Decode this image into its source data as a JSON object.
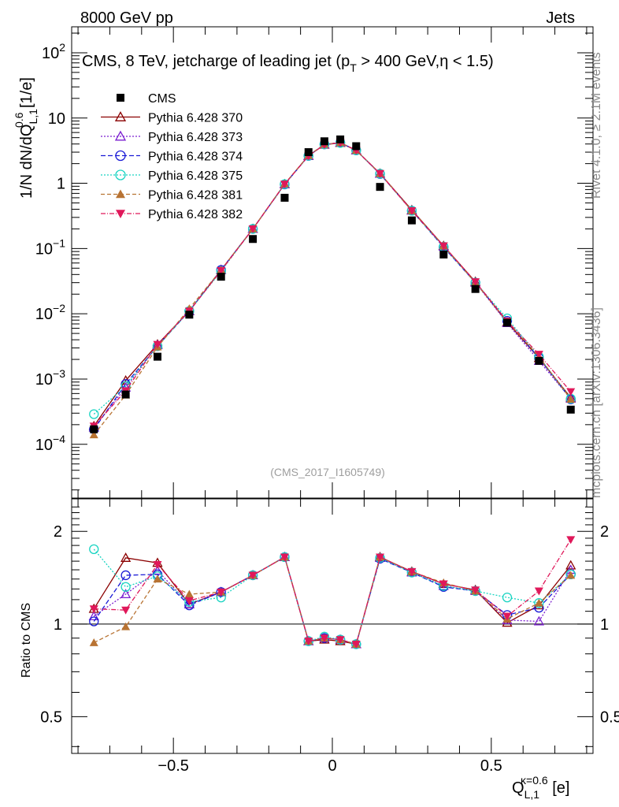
{
  "header": {
    "left": "8000 GeV pp",
    "right": "Jets"
  },
  "side_labels": {
    "rivet": "Rivet 4.1.0, ≥ 2.1M events",
    "mcplots": "mcplots.cern.ch [arXiv:1306.3436]"
  },
  "chart_data": [
    {
      "type": "scatter",
      "panel": "main",
      "title_pre": "CMS, 8 TeV, jetcharge of leading jet (p",
      "title_sub": "T",
      "title_post": " > 400 GeV,η < 1.5)",
      "ylabel_pre": "1/N dN/dQ",
      "ylabel_sup": "0.6",
      "ylabel_sub": "L,1",
      "ylabel_post": " [1/e]",
      "yscale": "log",
      "ylim": [
        1.5e-05,
        250
      ],
      "xlim": [
        -0.82,
        0.82
      ],
      "ytick_labels": [
        {
          "value": 0.0001,
          "base": "10",
          "exp": "−4"
        },
        {
          "value": 0.001,
          "base": "10",
          "exp": "−3"
        },
        {
          "value": 0.01,
          "base": "10",
          "exp": "−2"
        },
        {
          "value": 0.1,
          "base": "10",
          "exp": "−1"
        },
        {
          "value": 1,
          "base": "1",
          "exp": ""
        },
        {
          "value": 10,
          "base": "10",
          "exp": ""
        },
        {
          "value": 100,
          "base": "10",
          "exp": "2"
        }
      ],
      "watermark": "(CMS_2017_I1605749)",
      "x": [
        -0.75,
        -0.65,
        -0.55,
        -0.45,
        -0.35,
        -0.25,
        -0.15,
        -0.075,
        -0.025,
        0.025,
        0.075,
        0.15,
        0.25,
        0.35,
        0.45,
        0.55,
        0.65,
        0.75
      ],
      "series": [
        {
          "name": "CMS",
          "marker": "square",
          "color": "#000000",
          "dash": "",
          "values": [
            0.00017,
            0.00058,
            0.0022,
            0.0097,
            0.037,
            0.14,
            0.6,
            3.0,
            4.4,
            4.7,
            3.7,
            0.88,
            0.27,
            0.081,
            0.024,
            0.0073,
            0.0019,
            0.00034
          ]
        },
        {
          "name": "Pythia 6.428 370",
          "marker": "triangle-up-open",
          "color": "#8b0000",
          "dash": "",
          "values": [
            0.00019,
            0.00095,
            0.0034,
            0.011,
            0.047,
            0.2,
            0.97,
            2.65,
            3.9,
            4.15,
            3.2,
            1.41,
            0.39,
            0.11,
            0.031,
            0.0074,
            0.0021,
            0.00052
          ]
        },
        {
          "name": "Pythia 6.428 373",
          "marker": "triangle-up-open",
          "color": "#7b1fd0",
          "dash": "2,2",
          "values": [
            0.00018,
            0.00074,
            0.0033,
            0.011,
            0.047,
            0.2,
            0.97,
            2.62,
            3.95,
            4.2,
            3.2,
            1.4,
            0.38,
            0.107,
            0.03,
            0.0072,
            0.0019,
            0.0005
          ]
        },
        {
          "name": "Pythia 6.428 374",
          "marker": "circle-open",
          "color": "#1a1ad6",
          "dash": "6,3",
          "values": [
            0.00017,
            0.00084,
            0.0032,
            0.011,
            0.047,
            0.2,
            0.96,
            2.63,
            3.95,
            4.2,
            3.2,
            1.39,
            0.38,
            0.105,
            0.03,
            0.0078,
            0.0021,
            0.00049
          ]
        },
        {
          "name": "Pythia 6.428 375",
          "marker": "circle-open",
          "color": "#19d4c2",
          "dash": "2,2",
          "values": [
            0.00029,
            0.00078,
            0.0032,
            0.011,
            0.045,
            0.2,
            0.97,
            2.64,
            3.95,
            4.15,
            3.2,
            1.4,
            0.38,
            0.107,
            0.03,
            0.0085,
            0.0022,
            0.0005
          ]
        },
        {
          "name": "Pythia 6.428 381",
          "marker": "triangle-up-filled",
          "color": "#b87333",
          "dash": "5,3",
          "values": [
            0.00014,
            0.00057,
            0.0031,
            0.012,
            0.047,
            0.2,
            0.98,
            2.66,
            3.95,
            4.2,
            3.2,
            1.41,
            0.38,
            0.11,
            0.03,
            0.0076,
            0.0022,
            0.00049
          ]
        },
        {
          "name": "Pythia 6.428 382",
          "marker": "triangle-down-filled",
          "color": "#e0185a",
          "dash": "6,2,1,2",
          "values": [
            0.00019,
            0.00066,
            0.0034,
            0.011,
            0.046,
            0.2,
            0.97,
            2.62,
            3.9,
            4.2,
            3.2,
            1.41,
            0.38,
            0.11,
            0.031,
            0.0077,
            0.0024,
            0.00064
          ]
        }
      ]
    },
    {
      "type": "scatter",
      "panel": "ratio",
      "ylabel": "Ratio to CMS",
      "yscale": "log",
      "ylim": [
        0.38,
        2.55
      ],
      "ytick_labels": [
        {
          "value": 0.5,
          "label": "0.5"
        },
        {
          "value": 1,
          "label": "1"
        },
        {
          "value": 2,
          "label": "2"
        }
      ],
      "xlabel_pre": "Q",
      "xlabel_sup": "κ=0.6",
      "xlabel_sub": "L,1",
      "xlabel_post": " [e]",
      "xtick_labels": [
        {
          "value": -0.5,
          "label": "−0.5"
        },
        {
          "value": 0,
          "label": "0"
        },
        {
          "value": 0.5,
          "label": "0.5"
        }
      ],
      "reference_line": 1,
      "series": [
        {
          "name": "Pythia 6.428 370",
          "values": [
            1.12,
            1.64,
            1.58,
            1.16,
            1.27,
            1.44,
            1.65,
            0.88,
            0.89,
            0.88,
            0.86,
            1.65,
            1.48,
            1.35,
            1.29,
            1.01,
            1.15,
            1.55
          ]
        },
        {
          "name": "Pythia 6.428 373",
          "values": [
            1.06,
            1.25,
            1.49,
            1.16,
            1.27,
            1.44,
            1.65,
            0.88,
            0.9,
            0.89,
            0.86,
            1.64,
            1.47,
            1.33,
            1.28,
            1.03,
            1.02,
            1.5
          ]
        },
        {
          "name": "Pythia 6.428 374",
          "values": [
            1.02,
            1.44,
            1.45,
            1.15,
            1.27,
            1.44,
            1.65,
            0.88,
            0.9,
            0.89,
            0.86,
            1.63,
            1.47,
            1.32,
            1.28,
            1.07,
            1.13,
            1.45
          ]
        },
        {
          "name": "Pythia 6.428 375",
          "values": [
            1.75,
            1.32,
            1.43,
            1.18,
            1.22,
            1.44,
            1.65,
            0.88,
            0.91,
            0.89,
            0.86,
            1.64,
            1.47,
            1.33,
            1.28,
            1.22,
            1.17,
            1.45
          ]
        },
        {
          "name": "Pythia 6.428 381",
          "values": [
            0.87,
            0.98,
            1.4,
            1.25,
            1.27,
            1.44,
            1.65,
            0.88,
            0.9,
            0.89,
            0.86,
            1.65,
            1.48,
            1.36,
            1.28,
            1.04,
            1.17,
            1.44
          ]
        },
        {
          "name": "Pythia 6.428 382",
          "values": [
            1.12,
            1.11,
            1.56,
            1.19,
            1.27,
            1.44,
            1.65,
            0.88,
            0.9,
            0.89,
            0.86,
            1.65,
            1.48,
            1.35,
            1.29,
            1.06,
            1.28,
            1.88
          ]
        }
      ]
    }
  ]
}
